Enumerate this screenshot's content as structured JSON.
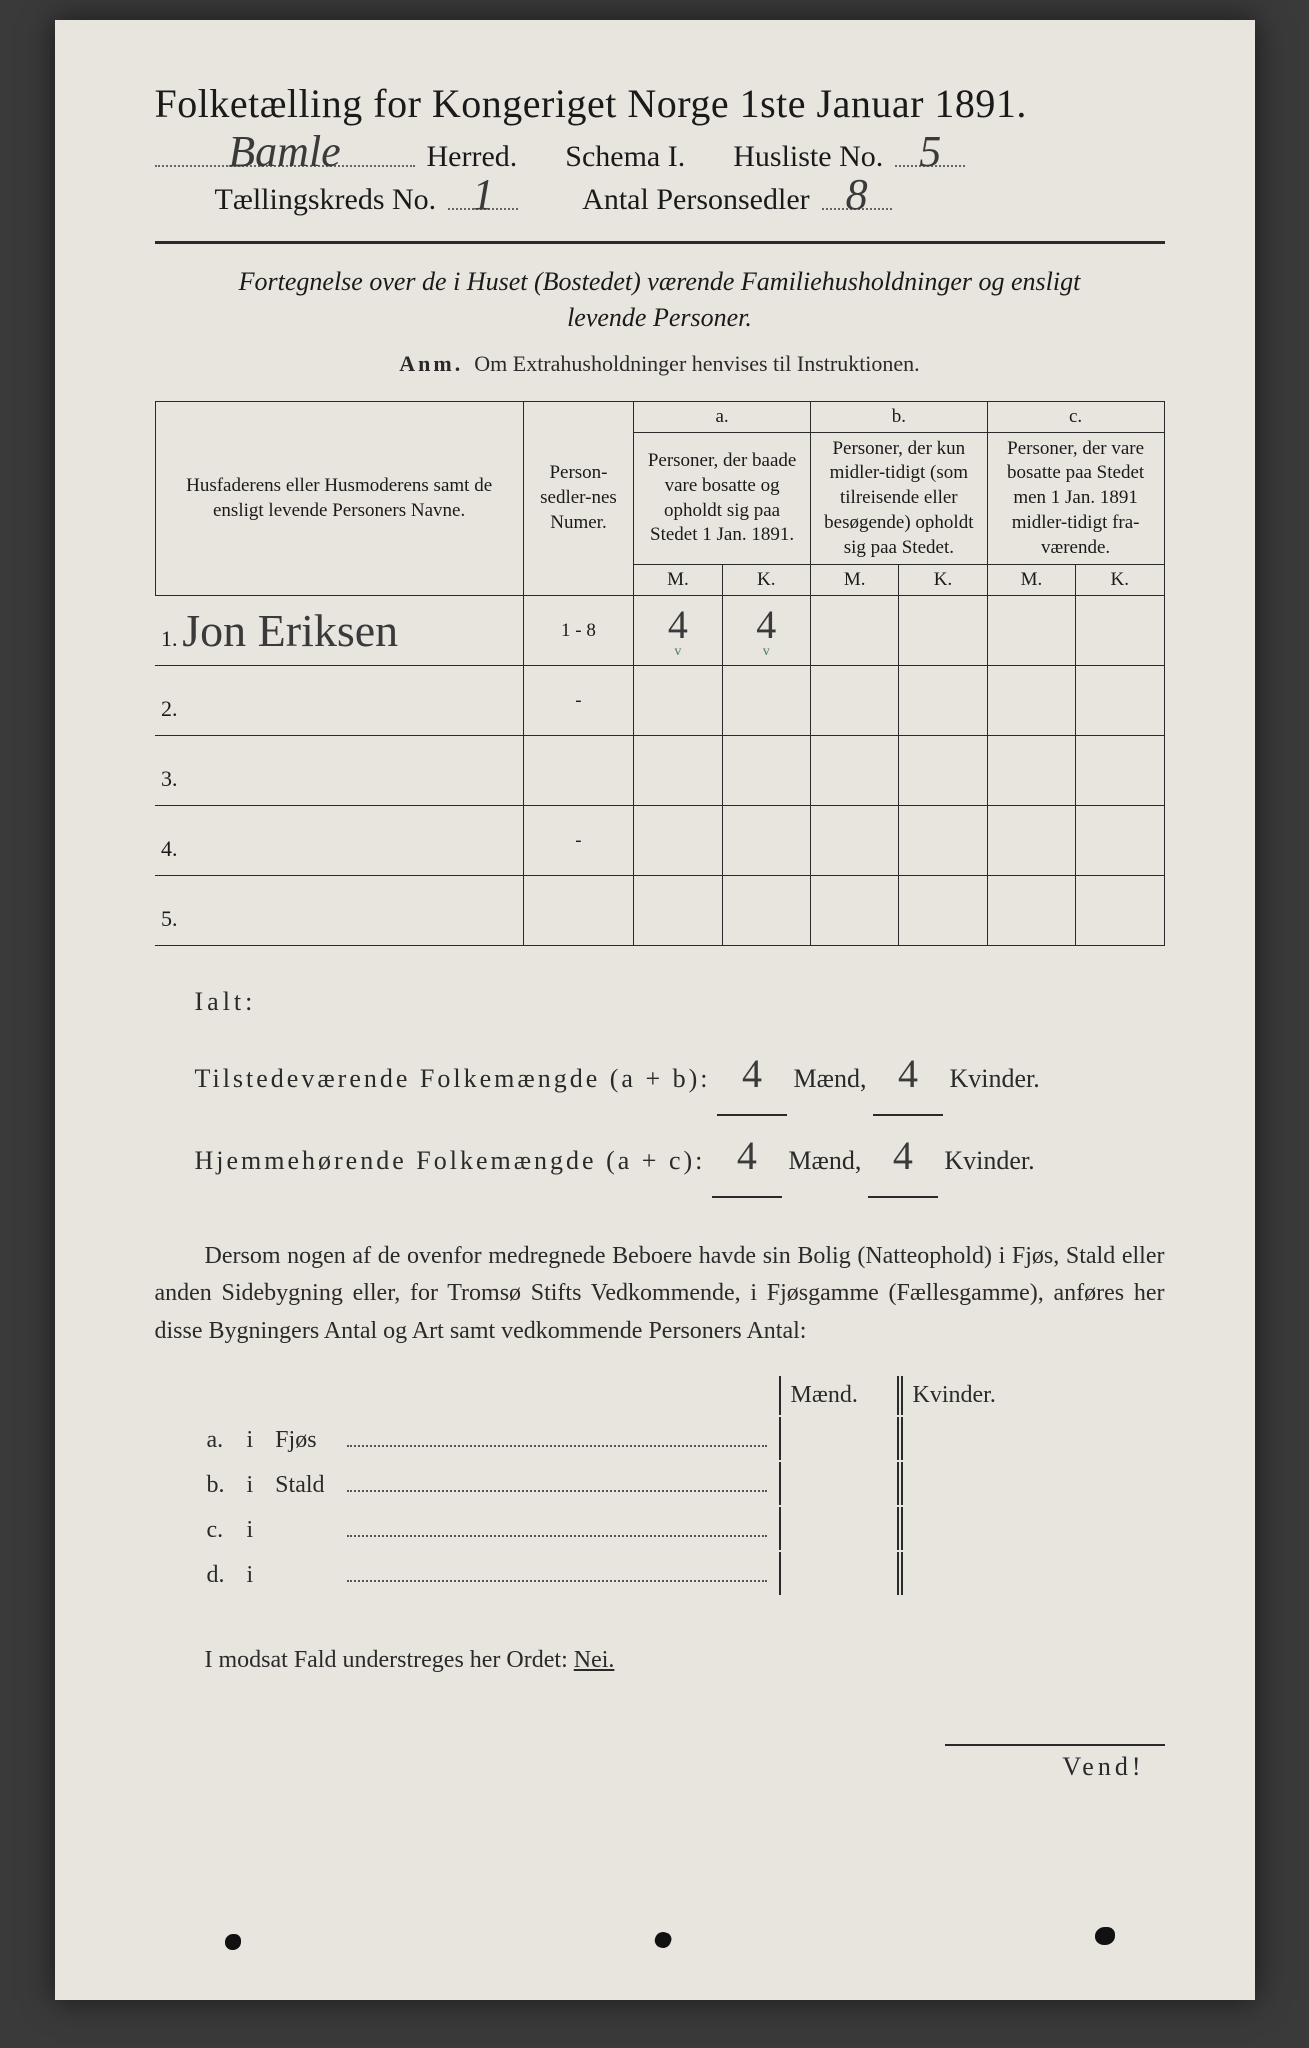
{
  "title": "Folketælling for Kongeriget Norge 1ste Januar 1891.",
  "header": {
    "herred_value": "Bamle",
    "herred_label": "Herred.",
    "schema_label": "Schema I.",
    "husliste_label": "Husliste No.",
    "husliste_value": "5",
    "kreds_label": "Tællingskreds No.",
    "kreds_value": "1",
    "personsedler_label": "Antal Personsedler",
    "personsedler_value": "8"
  },
  "fortegnelse": {
    "line1": "Fortegnelse over de i Huset (Bostedet) værende Familiehusholdninger og ensligt",
    "line2": "levende Personer."
  },
  "anm": {
    "prefix": "Anm.",
    "text": "Om Extrahusholdninger henvises til Instruktionen."
  },
  "table": {
    "col_name": "Husfaderens eller Husmoderens samt de ensligt levende Personers Navne.",
    "col_num": "Person-sedler-nes Numer.",
    "a_label": "a.",
    "a_text": "Personer, der baade vare bosatte og opholdt sig paa Stedet 1 Jan. 1891.",
    "b_label": "b.",
    "b_text": "Personer, der kun midler-tidigt (som tilreisende eller besøgende) opholdt sig paa Stedet.",
    "c_label": "c.",
    "c_text": "Personer, der vare bosatte paa Stedet men 1 Jan. 1891 midler-tidigt fra-værende.",
    "m": "M.",
    "k": "K.",
    "rows": [
      {
        "n": "1.",
        "name": "Jon Eriksen",
        "num": "1 - 8",
        "am": "4",
        "ak": "4",
        "bm": "",
        "bk": "",
        "cm": "",
        "ck": ""
      },
      {
        "n": "2.",
        "name": "",
        "num": "-",
        "am": "",
        "ak": "",
        "bm": "",
        "bk": "",
        "cm": "",
        "ck": ""
      },
      {
        "n": "3.",
        "name": "",
        "num": "",
        "am": "",
        "ak": "",
        "bm": "",
        "bk": "",
        "cm": "",
        "ck": ""
      },
      {
        "n": "4.",
        "name": "",
        "num": "-",
        "am": "",
        "ak": "",
        "bm": "",
        "bk": "",
        "cm": "",
        "ck": ""
      },
      {
        "n": "5.",
        "name": "",
        "num": "",
        "am": "",
        "ak": "",
        "bm": "",
        "bk": "",
        "cm": "",
        "ck": ""
      }
    ]
  },
  "ialt": {
    "title": "Ialt:",
    "row1_label": "Tilstedeværende Folkemængde (a + b):",
    "row2_label": "Hjemmehørende Folkemængde (a + c):",
    "maend": "Mænd,",
    "kvinder": "Kvinder.",
    "r1m": "4",
    "r1k": "4",
    "r2m": "4",
    "r2k": "4"
  },
  "dersom": "Dersom nogen af de ovenfor medregnede Beboere havde sin Bolig (Natteophold) i Fjøs, Stald eller anden Sidebygning eller, for Tromsø Stifts Vedkommende, i Fjøsgamme (Fællesgamme), anføres her disse Bygningers Antal og Art samt vedkommende Personers Antal:",
  "fjos": {
    "maend": "Mænd.",
    "kvinder": "Kvinder.",
    "rows": [
      {
        "k": "a.",
        "i": "i",
        "label": "Fjøs"
      },
      {
        "k": "b.",
        "i": "i",
        "label": "Stald"
      },
      {
        "k": "c.",
        "i": "i",
        "label": ""
      },
      {
        "k": "d.",
        "i": "i",
        "label": ""
      }
    ]
  },
  "nei": {
    "text": "I modsat Fald understreges her Ordet:",
    "word": "Nei."
  },
  "vend": "Vend!",
  "colors": {
    "paper_bg": "#e8e5de",
    "page_bg": "#3a3a3a",
    "ink": "#2a2a2a",
    "handwriting": "#3a3a3a",
    "tick_green": "#4a7a5a"
  }
}
